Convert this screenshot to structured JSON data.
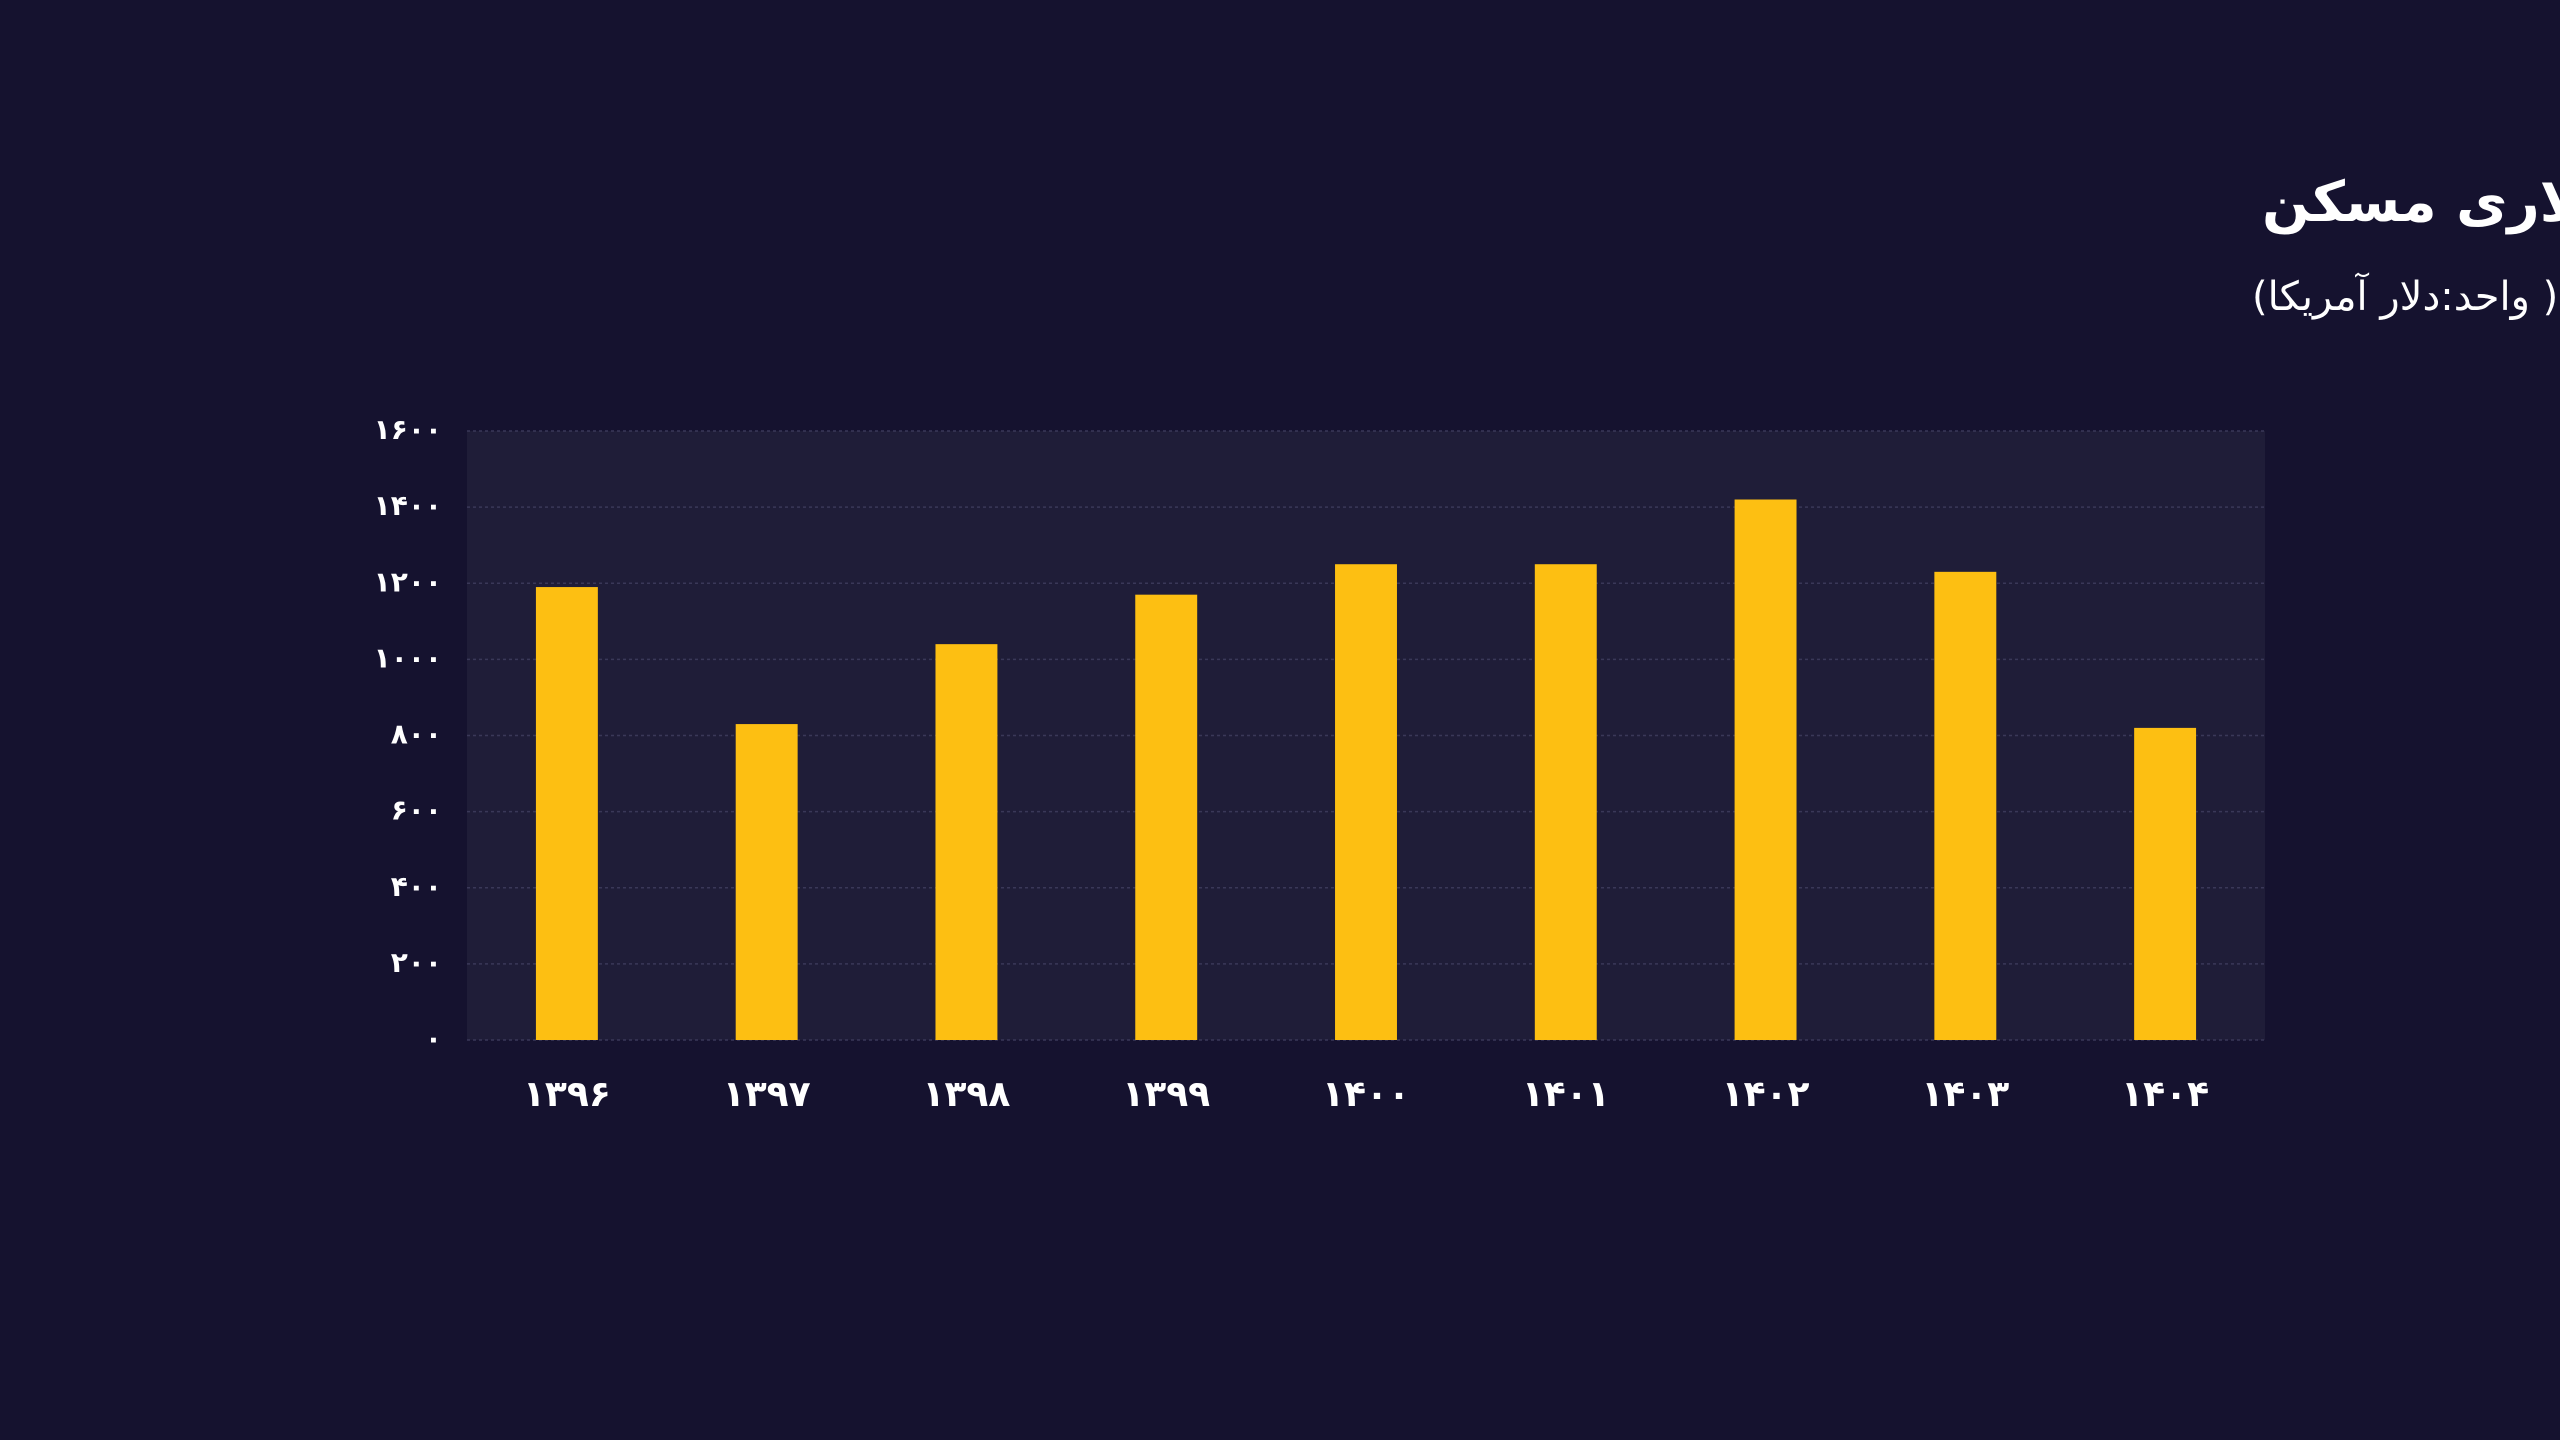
{
  "chart_data": {
    "type": "bar",
    "title": "قیمت دلاری مسکن",
    "subtitle": "( واحد:دلار آمریکا)",
    "categories": [
      "۱۳۹۶",
      "۱۳۹۷",
      "۱۳۹۸",
      "۱۳۹۹",
      "۱۴۰۰",
      "۱۴۰۱",
      "۱۴۰۲",
      "۱۴۰۳",
      "۱۴۰۴"
    ],
    "values": [
      1190,
      830,
      1040,
      1170,
      1250,
      1250,
      1420,
      1230,
      820
    ],
    "color": "#fdbf12",
    "ylim": [
      0,
      1600
    ],
    "yticks": [
      {
        "value": 0,
        "label": "۰"
      },
      {
        "value": 200,
        "label": "۲۰۰"
      },
      {
        "value": 400,
        "label": "۴۰۰"
      },
      {
        "value": 600,
        "label": "۶۰۰"
      },
      {
        "value": 800,
        "label": "۸۰۰"
      },
      {
        "value": 1000,
        "label": "۱۰۰۰"
      },
      {
        "value": 1200,
        "label": "۱۲۰۰"
      },
      {
        "value": 1400,
        "label": "۱۴۰۰"
      },
      {
        "value": 1600,
        "label": "۱۶۰۰"
      }
    ],
    "grid": true
  }
}
